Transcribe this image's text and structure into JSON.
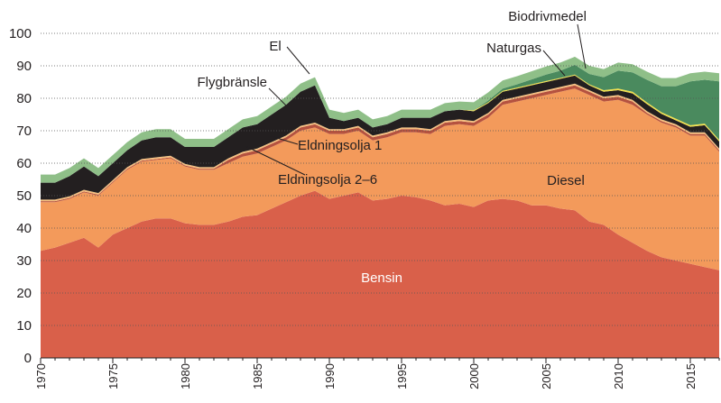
{
  "chart_data": {
    "type": "stacked_area",
    "x": [
      1970,
      1971,
      1972,
      1973,
      1974,
      1975,
      1976,
      1977,
      1978,
      1979,
      1980,
      1981,
      1982,
      1983,
      1984,
      1985,
      1986,
      1987,
      1988,
      1989,
      1990,
      1991,
      1992,
      1993,
      1994,
      1995,
      1996,
      1997,
      1998,
      1999,
      2000,
      2001,
      2002,
      2003,
      2004,
      2005,
      2006,
      2007,
      2008,
      2009,
      2010,
      2011,
      2012,
      2013,
      2014,
      2015,
      2016,
      2017
    ],
    "xlim": [
      1970,
      2017
    ],
    "xticks": [
      1970,
      1975,
      1980,
      1985,
      1990,
      1995,
      2000,
      2005,
      2010,
      2015
    ],
    "ylim": [
      0,
      100
    ],
    "yticks": [
      0,
      10,
      20,
      30,
      40,
      50,
      60,
      70,
      80,
      90,
      100
    ],
    "grid": true,
    "series": [
      {
        "name": "Bensin",
        "color": "#d9604a",
        "values": [
          33,
          34,
          35.5,
          37,
          34,
          38,
          40,
          42,
          43,
          43,
          41.5,
          41,
          41,
          42,
          43.5,
          44,
          46,
          48,
          50,
          51.5,
          49,
          50,
          51,
          48.5,
          49,
          50,
          49.5,
          48.5,
          47,
          47.5,
          46.5,
          48.5,
          49,
          48.5,
          47,
          47,
          46,
          45.5,
          42,
          41,
          38,
          35.5,
          33,
          31,
          30,
          29,
          28,
          27
        ]
      },
      {
        "name": "Diesel",
        "color": "#f39a5b",
        "values": [
          15,
          14,
          13.5,
          14,
          16,
          16,
          18,
          18.5,
          18,
          18.5,
          17.5,
          17,
          17,
          18,
          18.5,
          19,
          19,
          19,
          20,
          19.5,
          20,
          19,
          19,
          18.5,
          19,
          19.5,
          20,
          20.5,
          24.5,
          24.5,
          25,
          25.5,
          29,
          30.5,
          33,
          34,
          36,
          37.5,
          39,
          38,
          41.5,
          42.5,
          42,
          41.5,
          41,
          39.5,
          40.5,
          36.5
        ]
      },
      {
        "name": "Eldningsolja 2–6",
        "color": "#b5523f",
        "values": [
          0.3,
          0.3,
          0.3,
          0.3,
          0.3,
          0.3,
          0.3,
          0.3,
          0.3,
          0.3,
          0.3,
          0.3,
          0.3,
          1,
          1,
          1,
          1,
          1,
          1,
          1,
          1,
          1,
          1,
          1,
          1,
          1,
          1,
          1,
          1,
          1,
          1,
          1,
          1,
          1,
          1,
          1,
          1,
          1,
          1,
          1,
          1,
          1,
          0.5,
          0.5,
          0.5,
          0.5,
          0.5,
          0.5
        ]
      },
      {
        "name": "Eldningsolja 1",
        "color": "#f7c07f",
        "values": [
          0.5,
          0.5,
          0.5,
          0.5,
          0.5,
          0.5,
          0.5,
          0.5,
          0.5,
          0.5,
          0.5,
          0.5,
          0.5,
          0.5,
          0.5,
          0.5,
          0.5,
          0.5,
          0.5,
          0.5,
          0.5,
          0.5,
          0.5,
          0.5,
          0.5,
          0.5,
          0.5,
          0.5,
          0.5,
          0.5,
          0.5,
          0.5,
          0.5,
          0.5,
          0.5,
          0.5,
          0.5,
          0.5,
          0.5,
          0.5,
          0.5,
          0.5,
          0.5,
          0.5,
          0.5,
          0.5,
          0.5,
          0.5
        ]
      },
      {
        "name": "Flygbränsle",
        "color": "#231f20",
        "values": [
          5.2,
          5.2,
          6.2,
          7.2,
          5.2,
          5.2,
          5.2,
          5.7,
          6.2,
          5.7,
          5.2,
          6.2,
          6.2,
          6.5,
          7.5,
          7.5,
          8.5,
          9.5,
          10.5,
          11.5,
          3.5,
          2.5,
          2.5,
          2.5,
          2.5,
          3,
          3,
          3.5,
          3,
          3,
          3,
          3,
          2.5,
          2.5,
          2.5,
          2.5,
          2.5,
          2.5,
          1.5,
          1.5,
          1.5,
          2,
          2.2,
          1.7,
          1.2,
          1.7,
          2.2,
          2.2
        ]
      },
      {
        "name": "Naturgas",
        "color": "#f2e04a",
        "values": [
          0,
          0,
          0,
          0,
          0,
          0,
          0,
          0,
          0,
          0,
          0,
          0,
          0,
          0,
          0,
          0,
          0,
          0,
          0,
          0,
          0,
          0,
          0,
          0,
          0,
          0,
          0,
          0,
          0,
          0,
          0.3,
          0.3,
          0.3,
          0.3,
          0.3,
          0.3,
          0.3,
          0.3,
          0.3,
          0.5,
          0.5,
          0.5,
          0.5,
          0.5,
          0.5,
          0.5,
          0.5,
          0.5
        ]
      },
      {
        "name": "Biodrivmedel",
        "color": "#4a8a5e",
        "values": [
          0,
          0,
          0,
          0,
          0,
          0,
          0,
          0,
          0,
          0,
          0,
          0,
          0,
          0,
          0,
          0,
          0,
          0,
          0,
          0,
          0,
          0,
          0,
          0,
          0,
          0,
          0,
          0,
          0,
          0,
          0,
          0.5,
          0.7,
          1,
          1.5,
          2,
          2.2,
          3,
          3.2,
          4,
          5.5,
          6,
          7,
          8,
          10,
          13.5,
          13.5,
          18
        ]
      },
      {
        "name": "El",
        "color": "#8fbf88",
        "values": [
          2.5,
          2.5,
          2.5,
          2.5,
          2.5,
          2.5,
          2.5,
          2.5,
          2.5,
          2.5,
          2.5,
          2.5,
          2.5,
          2.5,
          2.5,
          2.5,
          2.5,
          2.5,
          2.5,
          2.5,
          2.5,
          2.5,
          2.5,
          2.5,
          2.5,
          2.5,
          2.5,
          2.5,
          2.5,
          2.5,
          2.5,
          2.5,
          2.5,
          2.5,
          2.5,
          2.5,
          2.5,
          2.5,
          2.5,
          2.5,
          2.5,
          2.5,
          2.5,
          2.5,
          2.5,
          2.5,
          2.5,
          2.5
        ]
      }
    ]
  }
}
